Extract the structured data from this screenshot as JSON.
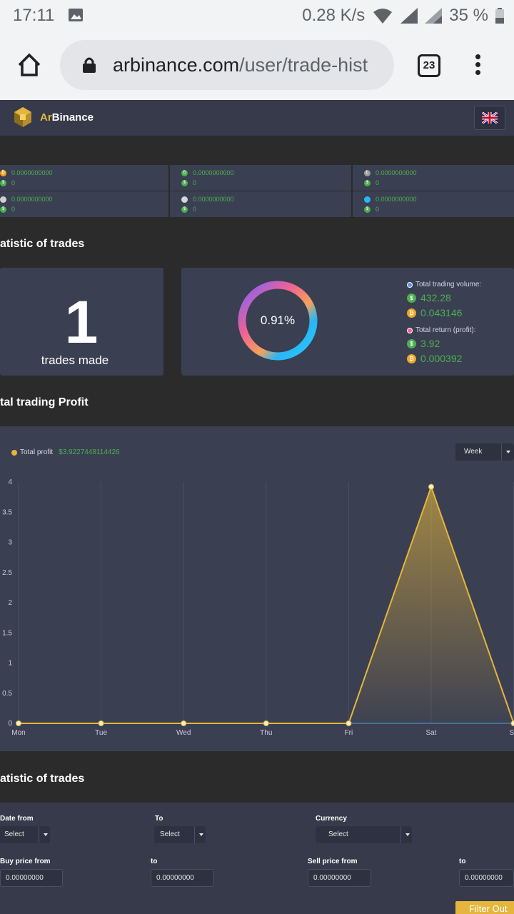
{
  "status_bar": {
    "time": "17:11",
    "network_speed": "0.28 K/s",
    "battery": "35 %"
  },
  "browser": {
    "url_domain": "arbinance.com",
    "url_path": "/user/trade-hist",
    "tab_count": "23"
  },
  "header": {
    "logo_ar": "Ar",
    "logo_binance": "Binance"
  },
  "wallets": [
    {
      "coin_color": "#f5a623",
      "amount": "0.0000000000",
      "usd": "0"
    },
    {
      "coin_color": "#4caf50",
      "amount": "0.0000000000",
      "usd": "0"
    },
    {
      "coin_color": "#9e9e9e",
      "amount": "0.0000000000",
      "usd": "0"
    },
    {
      "coin_color": "#d0d0d0",
      "amount": "0.0000000000",
      "usd": "0"
    },
    {
      "coin_color": "#cfd8dc",
      "amount": "0.0000000000",
      "usd": "0"
    },
    {
      "coin_color": "#29b6f6",
      "amount": "0.0000000000",
      "usd": "0"
    }
  ],
  "stats": {
    "section_title": "atistic of trades",
    "trades_count": "1",
    "trades_label": "trades made",
    "donut_percent": "0.91%",
    "donut_fraction": 0.0091,
    "volume_label": "Total trading volume:",
    "volume_usd": "432.28",
    "volume_btc": "0.043146",
    "return_label": "Total return (profit):",
    "return_usd": "3.92",
    "return_btc": "0.000392"
  },
  "profit": {
    "section_title": "tal trading Profit",
    "legend_label": "Total profit",
    "legend_value": "$3.9227448114426",
    "period_select": "Week"
  },
  "chart_data": {
    "type": "area",
    "categories": [
      "Mon",
      "Tue",
      "Wed",
      "Thu",
      "Fri",
      "Sat",
      "Su"
    ],
    "series": [
      {
        "name": "Total profit",
        "values": [
          0,
          0,
          0,
          0,
          0,
          3.92,
          0
        ],
        "color": "#e5b63b"
      }
    ],
    "y_ticks": [
      "0",
      "0.5",
      "1",
      "1.5",
      "2",
      "2.5",
      "3",
      "3.5",
      "4"
    ],
    "ylim": [
      0,
      4
    ],
    "grid": "vertical",
    "legend": "top-left"
  },
  "filters": {
    "section_title": "atistic of trades",
    "date_from_label": "Date from",
    "date_from_value": "Select",
    "to_label": "To",
    "to_value": "Select",
    "currency_label": "Currency",
    "currency_value": "Select",
    "buy_from_label": "Buy price from",
    "buy_from_value": "0.00000000",
    "buy_to_label": "to",
    "buy_to_value": "0.00000000",
    "sell_from_label": "Sell price from",
    "sell_from_value": "0.00000000",
    "sell_to_label": "to",
    "sell_to_value": "0.00000000",
    "filter_button": "Filter Out"
  }
}
